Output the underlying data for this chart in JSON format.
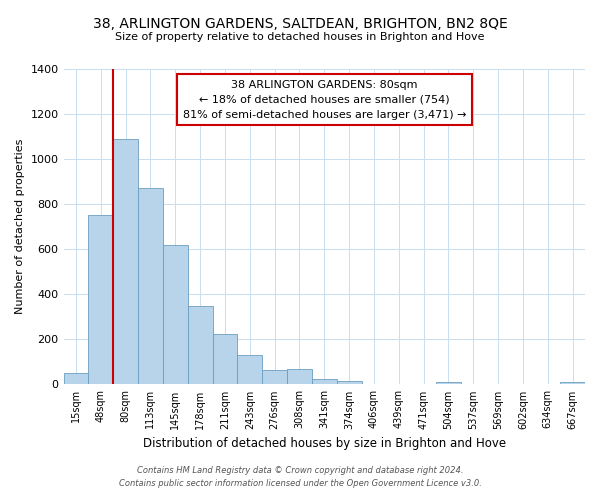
{
  "title": "38, ARLINGTON GARDENS, SALTDEAN, BRIGHTON, BN2 8QE",
  "subtitle": "Size of property relative to detached houses in Brighton and Hove",
  "xlabel": "Distribution of detached houses by size in Brighton and Hove",
  "ylabel": "Number of detached properties",
  "bar_labels": [
    "15sqm",
    "48sqm",
    "80sqm",
    "113sqm",
    "145sqm",
    "178sqm",
    "211sqm",
    "243sqm",
    "276sqm",
    "308sqm",
    "341sqm",
    "374sqm",
    "406sqm",
    "439sqm",
    "471sqm",
    "504sqm",
    "537sqm",
    "569sqm",
    "602sqm",
    "634sqm",
    "667sqm"
  ],
  "bar_values": [
    50,
    750,
    1090,
    870,
    620,
    350,
    225,
    130,
    65,
    70,
    25,
    15,
    0,
    0,
    0,
    10,
    0,
    0,
    0,
    0,
    10
  ],
  "bar_color": "#b8d4ea",
  "bar_edge_color": "#6a9ec0",
  "highlight_bar_index": 2,
  "highlight_color": "#cc0000",
  "ylim": [
    0,
    1400
  ],
  "yticks": [
    0,
    200,
    400,
    600,
    800,
    1000,
    1200,
    1400
  ],
  "annotation_title": "38 ARLINGTON GARDENS: 80sqm",
  "annotation_line1": "← 18% of detached houses are smaller (754)",
  "annotation_line2": "81% of semi-detached houses are larger (3,471) →",
  "footer_line1": "Contains HM Land Registry data © Crown copyright and database right 2024.",
  "footer_line2": "Contains public sector information licensed under the Open Government Licence v3.0.",
  "bg_color": "#ffffff",
  "grid_color": "#c8dff0"
}
